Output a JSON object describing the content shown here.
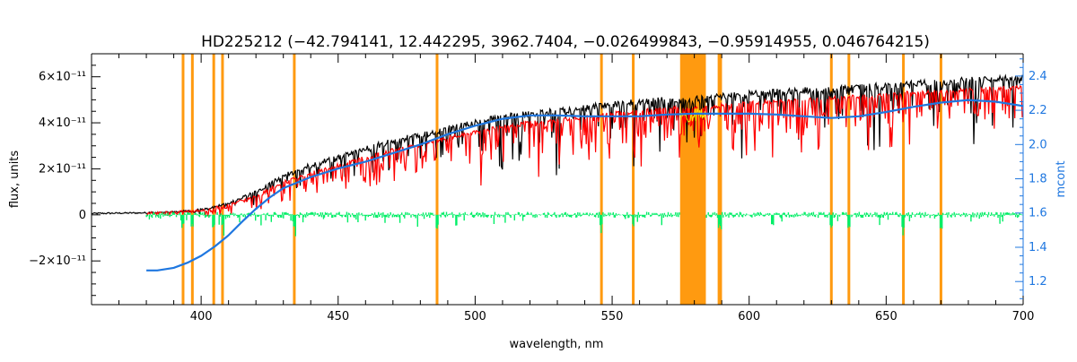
{
  "chart_data": {
    "type": "line",
    "title": "HD225212   (−42.794141, 12.442295, 3962.7404, −0.026499843, −0.95914955, 0.046764215)",
    "xlabel": "wavelength, nm",
    "ylabel": "flux, units",
    "y2label": "mcont",
    "xlim": [
      360,
      700
    ],
    "ylim": [
      -3.9e-11,
      7e-11
    ],
    "y2lim": [
      1.065,
      2.53
    ],
    "x_ticks": [
      400,
      450,
      500,
      550,
      600,
      650,
      700
    ],
    "x_tick_labels": [
      "400",
      "450",
      "500",
      "550",
      "600",
      "650",
      "700"
    ],
    "y_ticks": [
      -2e-11,
      0,
      2e-11,
      4e-11,
      6e-11
    ],
    "y_tick_labels": [
      "−2×10⁻¹¹",
      "0",
      "2×10⁻¹¹",
      "4×10⁻¹¹",
      "6×10⁻¹¹"
    ],
    "y2_ticks": [
      1.2,
      1.4,
      1.6,
      1.8,
      2.0,
      2.2,
      2.4
    ],
    "y2_tick_labels": [
      "1.2",
      "1.4",
      "1.6",
      "1.8",
      "2.0",
      "2.2",
      "2.4"
    ],
    "grid": false,
    "masked_lines": [
      393.4,
      396.8,
      404.6,
      407.8,
      434.0,
      486.1,
      546.1,
      557.7,
      589.0,
      589.6,
      630.0,
      636.4,
      656.3,
      670.0
    ],
    "masked_band": [
      574.8,
      584.2
    ],
    "series": [
      {
        "name": "",
        "color": "#000000",
        "role": "observed flux",
        "x": [
          360,
          380,
          390,
          400,
          410,
          420,
          430,
          440,
          450,
          460,
          470,
          480,
          490,
          500,
          510,
          520,
          530,
          540,
          550,
          560,
          570,
          580,
          590,
          600,
          610,
          620,
          630,
          640,
          650,
          660,
          670,
          680,
          690,
          700
        ],
        "y": [
          6e-13,
          9e-13,
          1.3e-12,
          2.2e-12,
          5e-12,
          1e-11,
          1.7e-11,
          2.15e-11,
          2.5e-11,
          2.85e-11,
          3.2e-11,
          3.45e-11,
          3.75e-11,
          4e-11,
          4.25e-11,
          4.4e-11,
          4.5e-11,
          4.65e-11,
          4.8e-11,
          4.9e-11,
          5e-11,
          5.05e-11,
          5.15e-11,
          5.25e-11,
          5.35e-11,
          5.4e-11,
          5.45e-11,
          5.55e-11,
          5.6e-11,
          5.7e-11,
          5.75e-11,
          5.85e-11,
          5.9e-11,
          5.95e-11
        ]
      },
      {
        "name": "",
        "color": "#ff0000",
        "role": "model flux",
        "x": [
          380,
          390,
          400,
          410,
          420,
          430,
          440,
          450,
          460,
          470,
          480,
          490,
          500,
          510,
          520,
          530,
          540,
          550,
          560,
          570,
          580,
          590,
          600,
          610,
          620,
          630,
          640,
          650,
          660,
          670,
          680,
          690,
          700
        ],
        "y": [
          4e-13,
          8e-13,
          1.6e-12,
          4e-12,
          8e-12,
          1.4e-11,
          1.8e-11,
          2.15e-11,
          2.5e-11,
          2.8e-11,
          3.05e-11,
          3.35e-11,
          3.6e-11,
          3.8e-11,
          4e-11,
          4.1e-11,
          4.25e-11,
          4.4e-11,
          4.5e-11,
          4.6e-11,
          4.65e-11,
          4.75e-11,
          4.85e-11,
          4.95e-11,
          5e-11,
          5.05e-11,
          5.15e-11,
          5.2e-11,
          5.3e-11,
          5.35e-11,
          5.45e-11,
          5.5e-11,
          5.55e-11
        ]
      },
      {
        "name": "",
        "color": "#00ee66",
        "role": "residuals",
        "x": [
          380,
          700
        ],
        "y": [
          0,
          0
        ]
      },
      {
        "name": "",
        "color": "#1f77e0",
        "axis": "right",
        "role": "mcont",
        "x": [
          380,
          384,
          390,
          395,
          400,
          405,
          410,
          415,
          420,
          425,
          430,
          440,
          450,
          460,
          470,
          480,
          490,
          500,
          510,
          520,
          530,
          540,
          550,
          560,
          570,
          580,
          590,
          600,
          610,
          620,
          630,
          640,
          650,
          660,
          670,
          680,
          690,
          700
        ],
        "y": [
          1.265,
          1.265,
          1.28,
          1.31,
          1.35,
          1.405,
          1.47,
          1.55,
          1.625,
          1.69,
          1.745,
          1.81,
          1.86,
          1.9,
          1.95,
          2.0,
          2.06,
          2.11,
          2.15,
          2.17,
          2.17,
          2.165,
          2.165,
          2.165,
          2.175,
          2.18,
          2.18,
          2.18,
          2.175,
          2.165,
          2.155,
          2.165,
          2.19,
          2.22,
          2.245,
          2.26,
          2.25,
          2.225
        ]
      }
    ]
  }
}
